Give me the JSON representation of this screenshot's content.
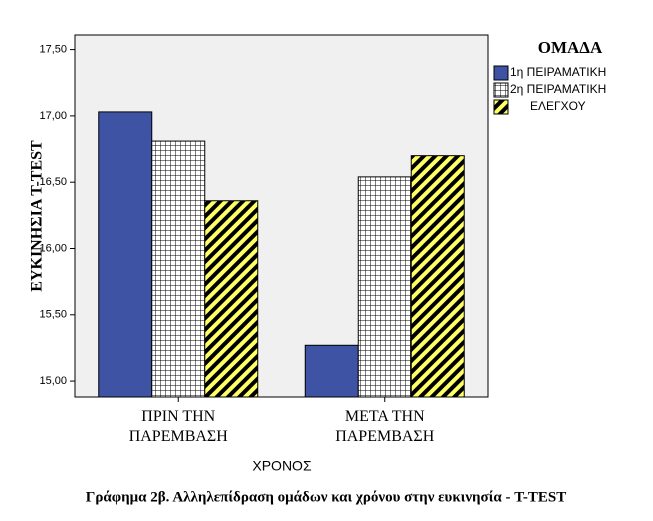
{
  "chart_data": {
    "type": "bar",
    "title": "Γράφημα 2β. Αλληλεπίδραση ομάδων και χρόνου στην ευκινησία - T-TEST",
    "x_label": "ΧΡΟΝΟΣ",
    "y_label": "ΕΥΚΙΝΗΣΙΑ Τ-TEST",
    "legend_title": "ΟΜΑΔΑ",
    "categories": [
      "ΠΡΙΝ ΤΗΝ ΠΑΡΕΜΒΑΣΗ",
      "ΜΕΤΑ ΤΗΝ ΠΑΡΕΜΒΑΣΗ"
    ],
    "series": [
      {
        "name": "1η ΠΕΙΡΑΜΑΤΙΚΗ",
        "color": "#3e53a4",
        "values": [
          17.03,
          15.27
        ]
      },
      {
        "name": "2η ΠΕΙΡΑΜΑΤΙΚΗ",
        "color": "#ffffff",
        "hatch": "grid",
        "values": [
          16.81,
          16.54
        ]
      },
      {
        "name": "ΕΛΕΓΧΟΥ",
        "color": "#ffff66",
        "hatch": "diagonal",
        "values": [
          16.36,
          16.7
        ]
      }
    ],
    "ylim": [
      14.88,
      17.61
    ],
    "yticks": [
      {
        "value": 15,
        "label": "15,00"
      },
      {
        "value": 15.5,
        "label": "15,50"
      },
      {
        "value": 16,
        "label": "16,00"
      },
      {
        "value": 16.5,
        "label": "16,50"
      },
      {
        "value": 17,
        "label": "17,00"
      },
      {
        "value": 17.5,
        "label": "17,50"
      }
    ],
    "legend": "right"
  }
}
